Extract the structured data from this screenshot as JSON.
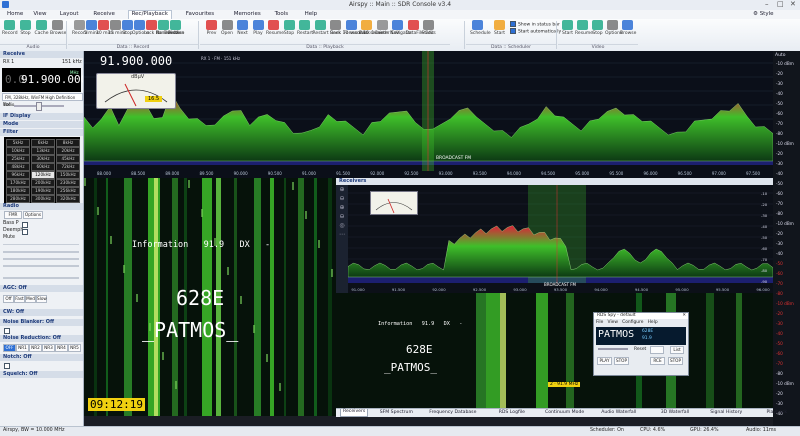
{
  "window": {
    "title": "Airspy :: Main :: SDR Console v3.4",
    "style_label": "Style"
  },
  "menu": [
    "Home",
    "View",
    "Layout",
    "Receive",
    "Rec/Playback",
    "Favourites",
    "Memories",
    "Tools",
    "Help"
  ],
  "menu_active_index": 4,
  "ribbon": {
    "audio": [
      "Record",
      "Stop",
      "Cache",
      "Browse"
    ],
    "data_record": [
      "Record",
      "5 mins",
      "10 mins",
      "15 mins",
      "Stop",
      "Options",
      "Lock Bandwidth",
      "No Selection",
      "Browse"
    ],
    "data_playback": [
      "Prev",
      "Open",
      "Next",
      "Play",
      "Resume",
      "Stop",
      "Restart",
      "Restart Back 10 seconds",
      "Seek",
      "Forward 10 seconds",
      "Back 1 min",
      "Center Edit",
      "Navigator",
      "DataFile Edit",
      "Status"
    ],
    "scheduler": [
      "Schedule",
      "Start"
    ],
    "scheduler_options": [
      "Show in status bar",
      "Start automatically"
    ],
    "video": [
      "Start",
      "Resume",
      "Stop",
      "Options",
      "Browse"
    ],
    "groups": [
      "Audio",
      "Data :: Record",
      "Data :: Playback",
      "Data :: Scheduler",
      "Video"
    ]
  },
  "left_panel": {
    "receive_header": "Receive",
    "rx_label": "RX 1",
    "rx_bw": "151 kHz",
    "freq_prefix": "0.0",
    "freq_main": "91.900.000",
    "freq_unit": "MHz",
    "mode_desc": "FM, 328kHz, WinFM High Definition Audio",
    "vol_label": "Vol",
    "sections": [
      "IF Display",
      "Mode",
      "Filter"
    ],
    "filters": [
      [
        "5kHz",
        "6kHz",
        "8kHz"
      ],
      [
        "10kHz",
        "13kHz",
        "20kHz"
      ],
      [
        "25kHz",
        "30kHz",
        "45kHz"
      ],
      [
        "48kHz",
        "60kHz",
        "72kHz"
      ],
      [
        "96kHz",
        "120kHz",
        "150kHz"
      ],
      [
        "170kHz",
        "200kHz",
        "230kHz"
      ],
      [
        "180kHz",
        "190kHz",
        "256kHz"
      ],
      [
        "280kHz",
        "300kHz",
        "320kHz"
      ]
    ],
    "filter_selected": "120kHz",
    "radio_header": "Radio",
    "radio_buttons": [
      "FMR",
      "Options"
    ],
    "ctrl_labels": [
      "Bass P",
      "Deemph",
      "Mute"
    ],
    "agc_header": "AGC: Off",
    "agc_options": [
      "Off",
      "Fast",
      "Med",
      "Slow"
    ],
    "cw_header": "CW: Off",
    "nb_header": "Noise Blanker: Off",
    "nr_header": "Noise Reduction: Off",
    "nr_options": [
      "OFF",
      "NR1",
      "NR2",
      "NR3",
      "NR4",
      "NR5"
    ],
    "notch_header": "Notch: Off",
    "squelch_header": "Squelch: Off"
  },
  "top_spectrum": {
    "freq": "91.900.000",
    "mode_txt": "RX 1 · FM · 151 kHz",
    "unit": "dBµV",
    "meter_value": "16.5",
    "broadcast_label": "BROADCAST FM",
    "y_ticks": [
      "-10 dBm",
      "-20",
      "-30",
      "-40",
      "-50",
      "-60",
      "-70",
      "-80"
    ],
    "x_ticks": [
      "88.000",
      "88.500",
      "89.000",
      "89.500",
      "90.000",
      "90.500",
      "91.000",
      "91.500",
      "92.000",
      "92.500",
      "93.000",
      "93.500",
      "94.000",
      "94.500",
      "95.000",
      "95.500",
      "96.000",
      "96.500",
      "97.000",
      "97.500"
    ],
    "peaks": [
      0.55,
      0.45,
      0.6,
      0.7,
      0.5,
      0.65,
      0.75,
      0.8,
      0.55,
      0.6,
      0.85,
      0.7,
      0.6,
      0.55,
      0.5,
      0.45,
      0.6,
      0.7,
      0.65,
      0.5,
      0.55,
      0.62,
      0.58,
      0.5,
      0.4,
      0.35,
      0.42,
      0.5,
      0.6,
      0.55,
      0.5,
      0.45,
      0.4,
      0.5,
      0.55,
      0.6,
      0.65,
      0.7,
      0.5,
      0.45,
      0.4,
      0.5,
      0.6,
      0.65,
      0.72,
      0.55,
      0.5,
      0.45,
      0.4,
      0.35,
      0.42,
      0.5,
      0.6,
      0.7,
      0.62,
      0.55,
      0.5,
      0.45,
      0.52,
      0.58,
      0.62,
      0.7,
      0.65,
      0.6,
      0.55,
      0.5,
      0.45,
      0.4,
      0.38,
      0.42,
      0.5,
      0.55,
      0.6,
      0.65,
      0.68,
      0.72,
      0.6,
      0.5,
      0.45,
      0.4
    ]
  },
  "rds_overlay": {
    "info": "Information   91.9   DX   -",
    "ps_line1": "628E",
    "ps_line2": "_PATMOS_",
    "clock": "09:12:19"
  },
  "receivers": {
    "header": "Receivers",
    "broadcast_label": "BROADCAST FM",
    "x_ticks": [
      "91.000",
      "91.500",
      "92.000",
      "92.500",
      "93.000",
      "93.500",
      "94.000",
      "94.500",
      "95.000",
      "95.500",
      "96.000"
    ],
    "y_ticks": [
      "-10",
      "-20",
      "-30",
      "-40",
      "-50",
      "-60",
      "-70",
      "-80",
      "-90"
    ],
    "rds_info": "Information   91.9   DX   -",
    "rds_ps1": "628E",
    "rds_ps2": "_PATMOS_",
    "rds_freq_tag": "2 · 91.9 MHz"
  },
  "rds_spy": {
    "title": "RDS Spy - default",
    "menu": [
      "File",
      "View",
      "Configure",
      "Help"
    ],
    "pi": "628E",
    "ps": "PATMOS",
    "sub": "91.9",
    "buttons": [
      "PLAY",
      "STOP",
      "RCE",
      "STOP"
    ],
    "reset_label": "Reset",
    "list_label": "List"
  },
  "bottom_tabs": [
    "Receivers",
    "SFM Spectrum",
    "Frequency Database",
    "RDS Logfile",
    "Continuum Mode",
    "Audio Waterfall",
    "3D Waterfall",
    "Signal History",
    "Playback"
  ],
  "status": {
    "left": "Airspy, BW = 10.000 MHz",
    "scheduler": "Scheduler: On",
    "cpu": "CPU: 4.6%",
    "gpu": "GPU: 26.4%",
    "audio": "Audio: 11ms"
  },
  "colors": {
    "accent": "#2d6fd4",
    "spectrum_green": "#3fbf2a",
    "spectrum_red": "#e0203a",
    "waterfall_bg": "#06120a",
    "rds_yellow": "#f0d010"
  }
}
